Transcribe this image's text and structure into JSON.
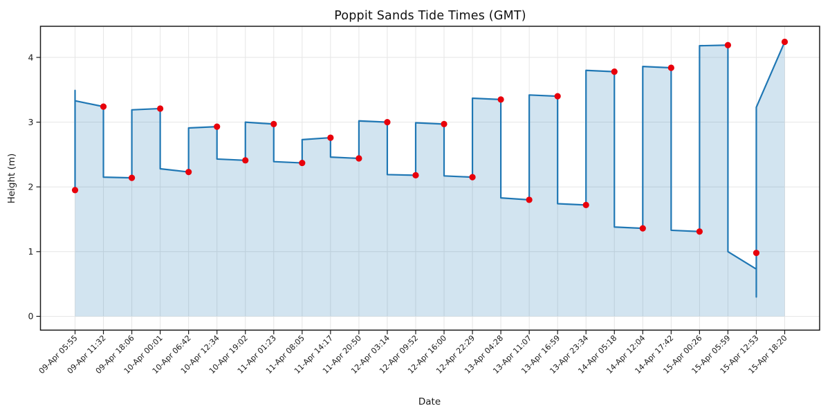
{
  "chart_data": {
    "type": "line",
    "title": "Poppit Sands Tide Times (GMT)",
    "xlabel": "Date",
    "ylabel": "Height (m)",
    "x_tick_labels": [
      "09-Apr 05:55",
      "09-Apr 11:32",
      "09-Apr 18:06",
      "10-Apr 00:01",
      "10-Apr 06:42",
      "10-Apr 12:34",
      "10-Apr 19:02",
      "11-Apr 01:23",
      "11-Apr 08:05",
      "11-Apr 14:17",
      "11-Apr 20:50",
      "12-Apr 03:14",
      "12-Apr 09:52",
      "12-Apr 16:00",
      "12-Apr 22:29",
      "13-Apr 04:28",
      "13-Apr 11:07",
      "13-Apr 16:59",
      "13-Apr 23:34",
      "14-Apr 05:18",
      "14-Apr 12:04",
      "14-Apr 17:42",
      "15-Apr 00:26",
      "15-Apr 05:59",
      "15-Apr 12:53",
      "15-Apr 18:20"
    ],
    "y_tick_labels": [
      "0",
      "1",
      "2",
      "3",
      "4"
    ],
    "ylim": [
      -0.21,
      4.48
    ],
    "grid": true,
    "legend": "none",
    "series": [
      {
        "name": "tide height (m)",
        "style": "line-with-markers",
        "color": "#1f77b4",
        "marker_color": "#e8000b",
        "fill_color": "#1f77b4",
        "fill_opacity": 0.2,
        "values": [
          1.95,
          3.24,
          2.14,
          3.21,
          2.23,
          2.93,
          2.41,
          2.97,
          2.37,
          2.76,
          2.44,
          3.0,
          2.18,
          2.97,
          2.15,
          3.35,
          1.8,
          3.4,
          1.72,
          3.78,
          1.36,
          3.84,
          1.31,
          4.19,
          0.98,
          4.24
        ]
      }
    ],
    "line_path_vertices": [
      [
        0,
        1.95
      ],
      [
        0,
        3.49
      ],
      [
        0,
        3.33
      ],
      [
        1,
        3.24
      ],
      [
        1,
        2.15
      ],
      [
        2,
        2.14
      ],
      [
        2,
        3.19
      ],
      [
        3,
        3.21
      ],
      [
        3,
        2.28
      ],
      [
        4,
        2.23
      ],
      [
        4,
        2.91
      ],
      [
        5,
        2.93
      ],
      [
        5,
        2.43
      ],
      [
        6,
        2.41
      ],
      [
        6,
        3.0
      ],
      [
        7,
        2.97
      ],
      [
        7,
        2.39
      ],
      [
        8,
        2.37
      ],
      [
        8,
        2.73
      ],
      [
        9,
        2.76
      ],
      [
        9,
        2.46
      ],
      [
        10,
        2.44
      ],
      [
        10,
        3.02
      ],
      [
        11,
        3.0
      ],
      [
        11,
        2.19
      ],
      [
        12,
        2.18
      ],
      [
        12,
        2.99
      ],
      [
        13,
        2.97
      ],
      [
        13,
        2.17
      ],
      [
        14,
        2.15
      ],
      [
        14,
        3.37
      ],
      [
        15,
        3.35
      ],
      [
        15,
        1.83
      ],
      [
        16,
        1.8
      ],
      [
        16,
        3.42
      ],
      [
        17,
        3.4
      ],
      [
        17,
        1.74
      ],
      [
        18,
        1.72
      ],
      [
        18,
        3.8
      ],
      [
        19,
        3.78
      ],
      [
        19,
        1.38
      ],
      [
        20,
        1.36
      ],
      [
        20,
        3.86
      ],
      [
        21,
        3.84
      ],
      [
        21,
        1.33
      ],
      [
        22,
        1.31
      ],
      [
        22,
        4.18
      ],
      [
        23,
        4.19
      ],
      [
        23,
        1.0
      ],
      [
        24,
        0.73
      ],
      [
        24,
        0.3
      ],
      [
        24,
        3.23
      ],
      [
        25,
        4.24
      ]
    ],
    "fill_baseline": 0
  },
  "colors": {
    "line": "#1f77b4",
    "fill": "#1f77b4",
    "marker": "#e8000b",
    "grid": "#e5e5e5",
    "spine": "#1a1a1a",
    "text": "#1a1a1a",
    "background": "#ffffff"
  }
}
